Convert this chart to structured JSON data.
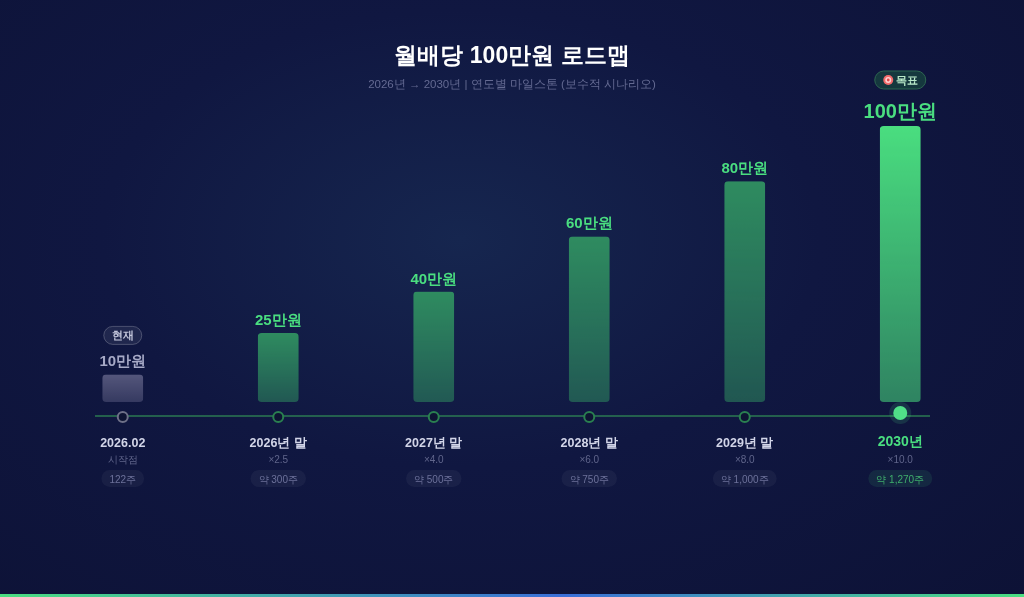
{
  "chart_data": {
    "type": "bar",
    "title": "월배당 100만원 로드맵",
    "subtitle": "2026년 → 2030년 | 연도별 마일스톤 (보수적 시나리오)",
    "categories": [
      "2026.02",
      "2026년 말",
      "2027년 말",
      "2028년 말",
      "2029년 말",
      "2030년"
    ],
    "values": [
      10,
      25,
      40,
      60,
      80,
      100
    ],
    "value_labels": [
      "10만원",
      "25만원",
      "40만원",
      "60만원",
      "80만원",
      "100만원"
    ],
    "colors": [
      "#55577c",
      "#2f8c60",
      "#2f8c60",
      "#2f8c60",
      "#2f8c60",
      "#4ade80"
    ],
    "annotations": [
      "현재",
      "목표",
      "시작점",
      "122주",
      "×2.5",
      "약 300주",
      "×4.0",
      "약 500주",
      "×6.0",
      "약 750주",
      "×8.0",
      "약 1,000주",
      "×10.0",
      "약 1,270주"
    ]
  }
}
